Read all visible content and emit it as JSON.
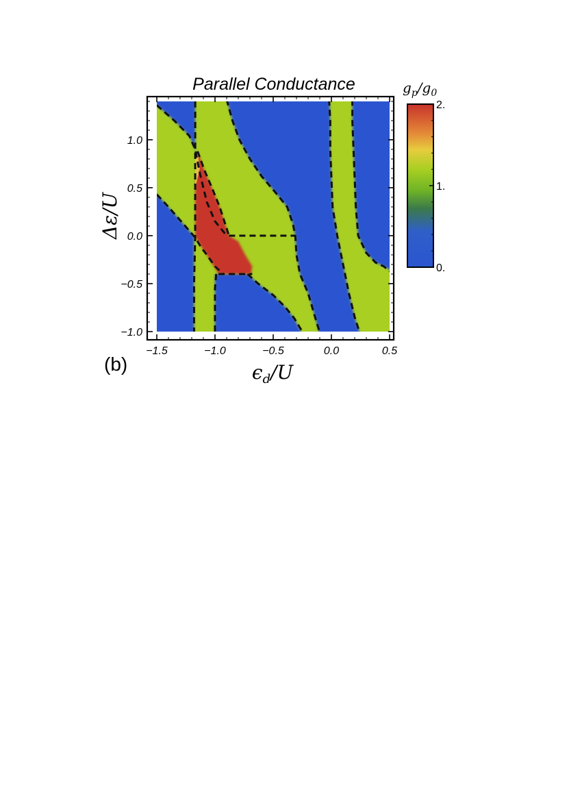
{
  "chart_data": {
    "type": "heatmap",
    "title": "Parallel Conductance",
    "panel_label": "(b)",
    "xlabel": "ϵd/U",
    "ylabel": "Δε/U",
    "xlim": [
      -1.55,
      0.5
    ],
    "ylim": [
      -1.05,
      1.45
    ],
    "x_ticks": [
      "-1.5",
      "-1.0",
      "-0.5",
      "0.0",
      "0.5"
    ],
    "x_tick_values": [
      -1.5,
      -1.0,
      -0.5,
      0.0,
      0.5
    ],
    "y_ticks": [
      "-1.0",
      "-0.5",
      "0.0",
      "0.5",
      "1.0"
    ],
    "y_tick_values": [
      -1.0,
      -0.5,
      0.0,
      0.5,
      1.0
    ],
    "colorbar": {
      "label": "gp/g0",
      "ticks": [
        "0.",
        "1.",
        "2."
      ],
      "tick_values": [
        0,
        1,
        2
      ],
      "range": [
        0,
        2
      ],
      "colors": [
        "#2b55d0",
        "#3a8a3a",
        "#7cc022",
        "#a8cf22",
        "#e8c84a",
        "#e28a36",
        "#cf3a2c"
      ]
    },
    "regions": [
      {
        "value": 0,
        "color": "#2b55d0",
        "label": "background"
      },
      {
        "value": 1,
        "color": "#a8cf22",
        "label": "left plateau"
      },
      {
        "value": 1,
        "color": "#a8cf22",
        "label": "central band"
      },
      {
        "value": 1,
        "color": "#a8cf22",
        "label": "right band"
      },
      {
        "value": 1,
        "color": "#a8cf22",
        "label": "left vertical strip"
      },
      {
        "value": 2,
        "color": "#c8342b",
        "label": "red pocket"
      }
    ],
    "boundaries": [
      {
        "name": "diag-left-upper",
        "points": [
          [
            -1.5,
            1.36
          ],
          [
            -1.35,
            1.2
          ],
          [
            -1.22,
            1.04
          ],
          [
            -1.17,
            0.9
          ],
          [
            -1.13,
            0.65
          ],
          [
            -1.07,
            0.35
          ],
          [
            -1.0,
            0.15
          ],
          [
            -0.9,
            0.0
          ]
        ]
      },
      {
        "name": "diag-left-lower",
        "points": [
          [
            -1.5,
            0.43
          ],
          [
            -1.4,
            0.3
          ],
          [
            -1.27,
            0.12
          ],
          [
            -1.17,
            -0.02
          ],
          [
            -1.12,
            -0.12
          ],
          [
            -1.07,
            -0.2
          ],
          [
            -1.0,
            -0.32
          ],
          [
            -0.93,
            -0.4
          ]
        ]
      },
      {
        "name": "vertical-left",
        "points": [
          [
            -1.17,
            1.4
          ],
          [
            -1.17,
            0.86
          ],
          [
            -1.17,
            0.0
          ],
          [
            -1.18,
            -0.5
          ],
          [
            -1.18,
            -1.0
          ]
        ]
      },
      {
        "name": "vertical-left-2",
        "points": [
          [
            -0.99,
            -0.4
          ],
          [
            -1.0,
            -0.55
          ],
          [
            -1.0,
            -0.8
          ],
          [
            -1.0,
            -1.0
          ]
        ]
      },
      {
        "name": "band-upper",
        "points": [
          [
            -0.9,
            1.42
          ],
          [
            -0.85,
            1.2
          ],
          [
            -0.79,
            1.0
          ],
          [
            -0.7,
            0.8
          ],
          [
            -0.6,
            0.62
          ],
          [
            -0.48,
            0.45
          ],
          [
            -0.38,
            0.3
          ],
          [
            -0.33,
            0.12
          ],
          [
            -0.31,
            0.0
          ],
          [
            -0.3,
            -0.2
          ],
          [
            -0.27,
            -0.4
          ],
          [
            -0.2,
            -0.6
          ],
          [
            -0.14,
            -0.85
          ],
          [
            -0.09,
            -1.05
          ]
        ]
      },
      {
        "name": "band-lower",
        "points": [
          [
            -1.15,
            0.88
          ],
          [
            -1.09,
            0.68
          ],
          [
            -1.02,
            0.48
          ],
          [
            -0.96,
            0.3
          ],
          [
            -0.92,
            0.15
          ],
          [
            -0.88,
            0.0
          ]
        ]
      },
      {
        "name": "band-lower-2",
        "points": [
          [
            -0.72,
            -0.4
          ],
          [
            -0.63,
            -0.5
          ],
          [
            -0.5,
            -0.62
          ],
          [
            -0.4,
            -0.74
          ],
          [
            -0.32,
            -0.86
          ],
          [
            -0.25,
            -1.0
          ]
        ]
      },
      {
        "name": "red-bottom",
        "points": [
          [
            -0.97,
            -0.4
          ],
          [
            -0.68,
            -0.4
          ]
        ]
      },
      {
        "name": "mid-dash",
        "points": [
          [
            -0.88,
            0.0
          ],
          [
            -0.31,
            0.0
          ]
        ]
      },
      {
        "name": "right-left",
        "points": [
          [
            -0.02,
            1.42
          ],
          [
            -0.01,
            1.2
          ],
          [
            -0.01,
            0.9
          ],
          [
            0.0,
            0.6
          ],
          [
            0.01,
            0.3
          ],
          [
            0.05,
            0.0
          ],
          [
            0.1,
            -0.3
          ],
          [
            0.15,
            -0.6
          ],
          [
            0.2,
            -0.85
          ],
          [
            0.24,
            -1.0
          ]
        ]
      },
      {
        "name": "right-right",
        "points": [
          [
            0.18,
            1.42
          ],
          [
            0.18,
            1.2
          ],
          [
            0.19,
            0.9
          ],
          [
            0.2,
            0.6
          ],
          [
            0.21,
            0.3
          ],
          [
            0.23,
            0.0
          ],
          [
            0.3,
            -0.18
          ],
          [
            0.38,
            -0.28
          ],
          [
            0.45,
            -0.32
          ],
          [
            0.5,
            -0.37
          ]
        ]
      }
    ]
  }
}
